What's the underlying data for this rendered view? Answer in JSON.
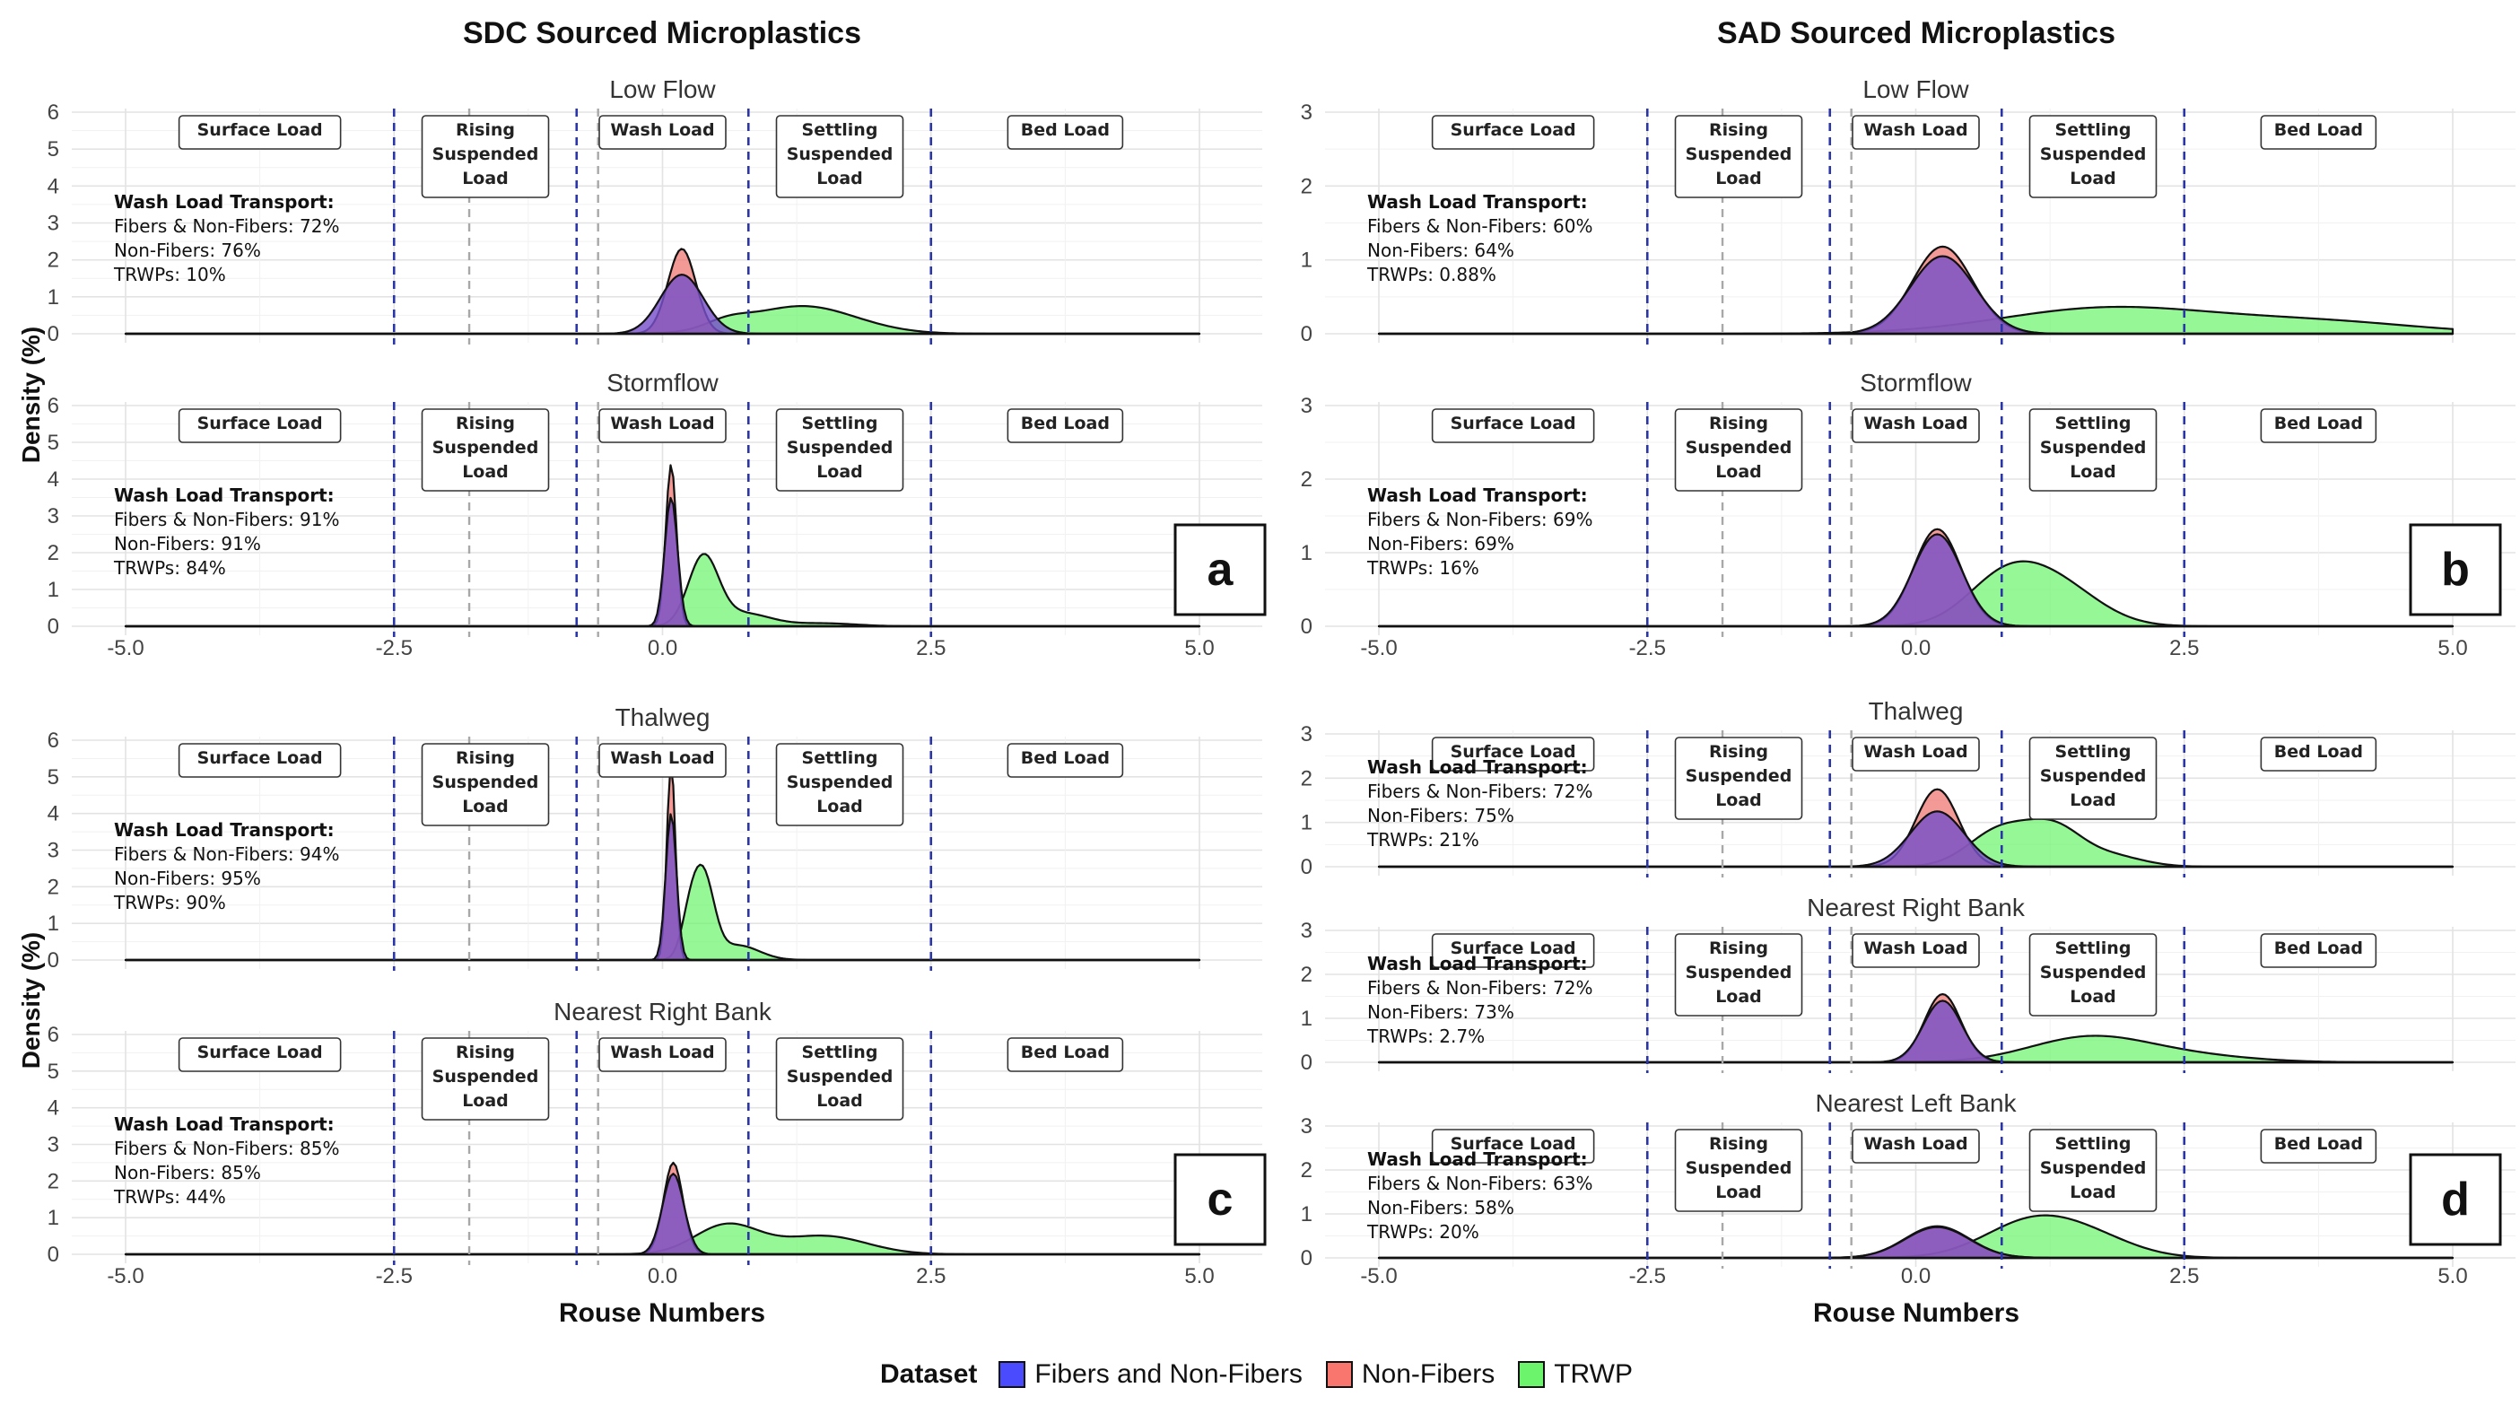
{
  "column_titles": [
    "SDC Sourced Microplastics",
    "SAD Sourced Microplastics"
  ],
  "axis_labels": {
    "x": "Rouse Numbers",
    "y": "Density (%)"
  },
  "zone_labels": {
    "surface": "Surface Load",
    "rising": [
      "Rising",
      "Suspended",
      "Load"
    ],
    "wash": "Wash Load",
    "settling": [
      "Settling",
      "Suspended",
      "Load"
    ],
    "bed": "Bed Load"
  },
  "wash_load_title": "Wash Load Transport:",
  "legend": {
    "title": "Dataset",
    "items": [
      {
        "label": "Fibers and Non-Fibers",
        "color": "#4a4aff"
      },
      {
        "label": "Non-Fibers",
        "color": "#f8766d"
      },
      {
        "label": "TRWP",
        "color": "#6cf46c"
      }
    ]
  },
  "chart_data": [
    {
      "type": "area",
      "panel_letter": "",
      "title": "Low Flow",
      "xlim": [
        -5,
        5
      ],
      "ylim": [
        0,
        6
      ],
      "yticks": [
        0,
        1,
        2,
        3,
        4,
        5,
        6
      ],
      "xticks": [
        "-5.0",
        "-2.5",
        "0.0",
        "2.5",
        "5.0"
      ],
      "boundaries": {
        "blue_dashed": [
          -2.5,
          -0.8,
          0.8,
          2.5
        ],
        "grey_dashed": [
          -1.8,
          -0.6
        ]
      },
      "annotation": [
        "Fibers & Non-Fibers: 72%",
        "Non-Fibers: 76%",
        "TRWPs: 10%"
      ],
      "series": [
        {
          "name": "Fibers and Non-Fibers",
          "peaks": [
            [
              0.18,
              1.6,
              0.2
            ]
          ]
        },
        {
          "name": "Non-Fibers",
          "peaks": [
            [
              0.18,
              2.3,
              0.13
            ]
          ]
        },
        {
          "name": "TRWP",
          "peaks": [
            [
              1.3,
              0.75,
              0.5
            ],
            [
              0.6,
              0.2,
              0.2
            ]
          ]
        }
      ]
    },
    {
      "type": "area",
      "panel_letter": "a",
      "title": "Stormflow",
      "xlim": [
        -5,
        5
      ],
      "ylim": [
        0,
        6
      ],
      "yticks": [
        0,
        1,
        2,
        3,
        4,
        5,
        6
      ],
      "xticks": [
        "-5.0",
        "-2.5",
        "0.0",
        "2.5",
        "5.0"
      ],
      "boundaries": {
        "blue_dashed": [
          -2.5,
          -0.8,
          0.8,
          2.5
        ],
        "grey_dashed": [
          -1.8,
          -0.6
        ]
      },
      "annotation": [
        "Fibers & Non-Fibers: 91%",
        "Non-Fibers: 91%",
        "TRWPs: 84%"
      ],
      "series": [
        {
          "name": "Fibers and Non-Fibers",
          "peaks": [
            [
              0.08,
              3.5,
              0.06
            ]
          ]
        },
        {
          "name": "Non-Fibers",
          "peaks": [
            [
              0.08,
              4.4,
              0.05
            ]
          ]
        },
        {
          "name": "TRWP",
          "peaks": [
            [
              0.38,
              1.85,
              0.14
            ],
            [
              0.75,
              0.35,
              0.25
            ],
            [
              1.5,
              0.08,
              0.3
            ]
          ]
        }
      ]
    },
    {
      "type": "area",
      "panel_letter": "",
      "title": "Thalweg",
      "xlim": [
        -5,
        5
      ],
      "ylim": [
        0,
        6
      ],
      "yticks": [
        0,
        1,
        2,
        3,
        4,
        5,
        6
      ],
      "xticks": [
        "-5.0",
        "-2.5",
        "0.0",
        "2.5",
        "5.0"
      ],
      "boundaries": {
        "blue_dashed": [
          -2.5,
          -0.8,
          0.8,
          2.5
        ],
        "grey_dashed": [
          -1.8,
          -0.6
        ]
      },
      "annotation": [
        "Fibers & Non-Fibers: 94%",
        "Non-Fibers: 95%",
        "TRWPs: 90%"
      ],
      "series": [
        {
          "name": "Fibers and Non-Fibers",
          "peaks": [
            [
              0.08,
              4.0,
              0.05
            ]
          ]
        },
        {
          "name": "Non-Fibers",
          "peaks": [
            [
              0.08,
              5.4,
              0.04
            ]
          ]
        },
        {
          "name": "TRWP",
          "peaks": [
            [
              0.38,
              2.2,
              0.1
            ],
            [
              0.25,
              0.9,
              0.08
            ],
            [
              0.7,
              0.4,
              0.2
            ]
          ]
        }
      ]
    },
    {
      "type": "area",
      "panel_letter": "c",
      "title": "Nearest Right Bank",
      "xlim": [
        -5,
        5
      ],
      "ylim": [
        0,
        6
      ],
      "yticks": [
        0,
        1,
        2,
        3,
        4,
        5,
        6
      ],
      "xticks": [
        "-5.0",
        "-2.5",
        "0.0",
        "2.5",
        "5.0"
      ],
      "boundaries": {
        "blue_dashed": [
          -2.5,
          -0.8,
          0.8,
          2.5
        ],
        "grey_dashed": [
          -1.8,
          -0.6
        ]
      },
      "annotation": [
        "Fibers & Non-Fibers: 85%",
        "Non-Fibers: 85%",
        "TRWPs: 44%"
      ],
      "series": [
        {
          "name": "Fibers and Non-Fibers",
          "peaks": [
            [
              0.1,
              2.2,
              0.1
            ]
          ]
        },
        {
          "name": "Non-Fibers",
          "peaks": [
            [
              0.1,
              2.5,
              0.09
            ]
          ]
        },
        {
          "name": "TRWP",
          "peaks": [
            [
              0.6,
              0.8,
              0.3
            ],
            [
              1.5,
              0.5,
              0.4
            ]
          ]
        }
      ]
    },
    {
      "type": "area",
      "panel_letter": "",
      "title": "Low Flow",
      "xlim": [
        -5,
        5
      ],
      "ylim": [
        0,
        3
      ],
      "yticks": [
        0,
        1,
        2,
        3
      ],
      "xticks": [
        "-5.0",
        "-2.5",
        "0.0",
        "2.5",
        "5.0"
      ],
      "boundaries": {
        "blue_dashed": [
          -2.5,
          -0.8,
          0.8,
          2.5
        ],
        "grey_dashed": [
          -1.8,
          -0.6
        ]
      },
      "annotation": [
        "Fibers & Non-Fibers: 60%",
        "Non-Fibers: 64%",
        "TRWPs: 0.88%"
      ],
      "series": [
        {
          "name": "Fibers and Non-Fibers",
          "peaks": [
            [
              0.25,
              1.05,
              0.3
            ]
          ]
        },
        {
          "name": "Non-Fibers",
          "peaks": [
            [
              0.25,
              1.18,
              0.28
            ]
          ]
        },
        {
          "name": "TRWP",
          "peaks": [
            [
              1.8,
              0.35,
              1.0
            ],
            [
              3.8,
              0.15,
              0.9
            ]
          ]
        }
      ]
    },
    {
      "type": "area",
      "panel_letter": "b",
      "title": "Stormflow",
      "xlim": [
        -5,
        5
      ],
      "ylim": [
        0,
        3
      ],
      "yticks": [
        0,
        1,
        2,
        3
      ],
      "xticks": [
        "-5.0",
        "-2.5",
        "0.0",
        "2.5",
        "5.0"
      ],
      "boundaries": {
        "blue_dashed": [
          -2.5,
          -0.8,
          0.8,
          2.5
        ],
        "grey_dashed": [
          -1.8,
          -0.6
        ]
      },
      "annotation": [
        "Fibers & Non-Fibers: 69%",
        "Non-Fibers: 69%",
        "TRWPs: 16%"
      ],
      "series": [
        {
          "name": "Fibers and Non-Fibers",
          "peaks": [
            [
              0.2,
              1.25,
              0.23
            ]
          ]
        },
        {
          "name": "Non-Fibers",
          "peaks": [
            [
              0.2,
              1.32,
              0.22
            ]
          ]
        },
        {
          "name": "TRWP",
          "peaks": [
            [
              0.8,
              0.55,
              0.35
            ],
            [
              1.3,
              0.55,
              0.4
            ]
          ]
        }
      ]
    },
    {
      "type": "area",
      "panel_letter": "",
      "title": "Thalweg",
      "xlim": [
        -5,
        5
      ],
      "ylim": [
        0,
        3
      ],
      "yticks": [
        0,
        1,
        2,
        3
      ],
      "xticks": [
        "-5.0",
        "-2.5",
        "0.0",
        "2.5",
        "5.0"
      ],
      "boundaries": {
        "blue_dashed": [
          -2.5,
          -0.8,
          0.8,
          2.5
        ],
        "grey_dashed": [
          -1.8,
          -0.6
        ]
      },
      "annotation": [
        "Fibers & Non-Fibers: 72%",
        "Non-Fibers: 75%",
        "TRWPs: 21%"
      ],
      "series": [
        {
          "name": "Fibers and Non-Fibers",
          "peaks": [
            [
              0.2,
              1.25,
              0.25
            ]
          ]
        },
        {
          "name": "Non-Fibers",
          "peaks": [
            [
              0.2,
              1.75,
              0.2
            ]
          ]
        },
        {
          "name": "TRWP",
          "peaks": [
            [
              0.8,
              0.85,
              0.3
            ],
            [
              1.3,
              0.75,
              0.25
            ],
            [
              1.8,
              0.25,
              0.3
            ]
          ]
        }
      ]
    },
    {
      "type": "area",
      "panel_letter": "",
      "title": "Nearest Right Bank",
      "xlim": [
        -5,
        5
      ],
      "ylim": [
        0,
        3
      ],
      "yticks": [
        0,
        1,
        2,
        3
      ],
      "xticks": [
        "-5.0",
        "-2.5",
        "0.0",
        "2.5",
        "5.0"
      ],
      "boundaries": {
        "blue_dashed": [
          -2.5,
          -0.8,
          0.8,
          2.5
        ],
        "grey_dashed": [
          -1.8,
          -0.6
        ]
      },
      "annotation": [
        "Fibers & Non-Fibers: 72%",
        "Non-Fibers: 73%",
        "TRWPs: 2.7%"
      ],
      "series": [
        {
          "name": "Fibers and Non-Fibers",
          "peaks": [
            [
              0.25,
              1.4,
              0.18
            ]
          ]
        },
        {
          "name": "Non-Fibers",
          "peaks": [
            [
              0.25,
              1.55,
              0.17
            ]
          ]
        },
        {
          "name": "TRWP",
          "peaks": [
            [
              1.6,
              0.55,
              0.55
            ],
            [
              2.5,
              0.15,
              0.6
            ]
          ]
        }
      ]
    },
    {
      "type": "area",
      "panel_letter": "d",
      "title": "Nearest Left Bank",
      "xlim": [
        -5,
        5
      ],
      "ylim": [
        0,
        3
      ],
      "yticks": [
        0,
        1,
        2,
        3
      ],
      "xticks": [
        "-5.0",
        "-2.5",
        "0.0",
        "2.5",
        "5.0"
      ],
      "boundaries": {
        "blue_dashed": [
          -2.5,
          -0.8,
          0.8,
          2.5
        ],
        "grey_dashed": [
          -1.8,
          -0.6
        ]
      },
      "annotation": [
        "Fibers & Non-Fibers: 63%",
        "Non-Fibers: 58%",
        "TRWPs: 20%"
      ],
      "series": [
        {
          "name": "Fibers and Non-Fibers",
          "peaks": [
            [
              0.2,
              0.7,
              0.3
            ]
          ]
        },
        {
          "name": "Non-Fibers",
          "peaks": [
            [
              0.2,
              0.72,
              0.3
            ]
          ]
        },
        {
          "name": "TRWP",
          "peaks": [
            [
              1.1,
              0.85,
              0.45
            ],
            [
              1.7,
              0.3,
              0.4
            ]
          ]
        }
      ]
    }
  ]
}
